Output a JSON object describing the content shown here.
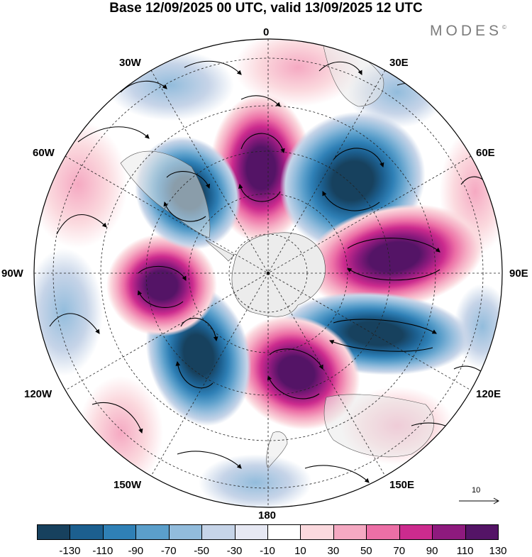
{
  "title": "Base 12/09/2025 00 UTC, valid 13/09/2025 12 UTC",
  "brand": {
    "name": "MODES",
    "mark": "©"
  },
  "longitude_labels": {
    "top": "0",
    "top_right": "30E",
    "upper_right": "60E",
    "right": "90E",
    "lower_right": "120E",
    "bottom_right": "150E",
    "bottom": "180",
    "bottom_left": "150W",
    "lower_left": "120W",
    "left": "90W",
    "upper_left": "60W",
    "top_left": "30W"
  },
  "vector_reference": {
    "value": "10"
  },
  "colorbar": {
    "colors": [
      "#17415e",
      "#1c5f8f",
      "#2f80b6",
      "#5b9fcb",
      "#92bcdc",
      "#c6d4e8",
      "#e6e8f3",
      "#ffffff",
      "#fbd9de",
      "#f5a9c2",
      "#ec6fa6",
      "#cc2b8e",
      "#8e1a7e",
      "#541466"
    ],
    "ticks": [
      "-130",
      "-110",
      "-90",
      "-70",
      "-50",
      "-30",
      "-10",
      "10",
      "30",
      "50",
      "70",
      "90",
      "110",
      "130"
    ]
  },
  "map": {
    "projection": "south-polar-stereographic",
    "field": "anomaly",
    "centers": [
      {
        "name": "positive-center-0",
        "lon": 0,
        "sign": "positive",
        "value": 130
      },
      {
        "name": "negative-center-45e",
        "lon": 45,
        "sign": "negative",
        "value": -130
      },
      {
        "name": "positive-center-85e",
        "lon": 85,
        "sign": "positive",
        "value": 130
      },
      {
        "name": "negative-center-105e",
        "lon": 105,
        "sign": "negative",
        "value": -130
      },
      {
        "name": "positive-center-160e",
        "lon": 160,
        "sign": "positive",
        "value": 130
      },
      {
        "name": "negative-center-145w",
        "lon": -145,
        "sign": "negative",
        "value": -130
      },
      {
        "name": "positive-center-95w",
        "lon": -95,
        "sign": "positive",
        "value": 130
      },
      {
        "name": "negative-center-40w",
        "lon": -40,
        "sign": "negative",
        "value": -130
      }
    ]
  }
}
